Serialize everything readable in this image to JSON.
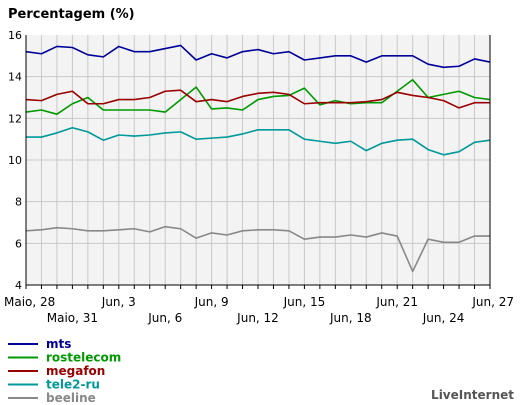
{
  "chart_data": {
    "type": "line",
    "title": "Percentagem (%)",
    "xlabel": "",
    "ylabel": "Percentagem (%)",
    "ylim": [
      4,
      16
    ],
    "yticks": [
      4,
      6,
      8,
      10,
      12,
      14,
      16
    ],
    "grid": true,
    "x": [
      "Maio, 28",
      "Maio, 29",
      "Maio, 30",
      "Maio, 31",
      "Jun, 1",
      "Jun, 2",
      "Jun, 3",
      "Jun, 4",
      "Jun, 5",
      "Jun, 6",
      "Jun, 7",
      "Jun, 8",
      "Jun, 9",
      "Jun, 10",
      "Jun, 11",
      "Jun, 12",
      "Jun, 13",
      "Jun, 14",
      "Jun, 15",
      "Jun, 16",
      "Jun, 17",
      "Jun, 18",
      "Jun, 19",
      "Jun, 20",
      "Jun, 21",
      "Jun, 22",
      "Jun, 23",
      "Jun, 24",
      "Jun, 25",
      "Jun, 26",
      "Jun, 27"
    ],
    "x_tick_labels_row1": [
      {
        "index": 0,
        "label": "Maio, 28"
      },
      {
        "index": 6,
        "label": "Jun, 3"
      },
      {
        "index": 12,
        "label": "Jun, 9"
      },
      {
        "index": 18,
        "label": "Jun, 15"
      },
      {
        "index": 24,
        "label": "Jun, 21"
      },
      {
        "index": 30,
        "label": "Jun, 27"
      }
    ],
    "x_tick_labels_row2": [
      {
        "index": 3,
        "label": "Maio, 31"
      },
      {
        "index": 9,
        "label": "Jun, 6"
      },
      {
        "index": 15,
        "label": "Jun, 12"
      },
      {
        "index": 21,
        "label": "Jun, 18"
      },
      {
        "index": 27,
        "label": "Jun, 24"
      }
    ],
    "legend_position": "bottom-left",
    "series": [
      {
        "name": "mts",
        "color": "#000099",
        "values": [
          15.2,
          15.1,
          15.45,
          15.4,
          15.05,
          14.95,
          15.45,
          15.2,
          15.2,
          15.35,
          15.5,
          14.8,
          15.1,
          14.9,
          15.2,
          15.3,
          15.1,
          15.2,
          14.8,
          14.9,
          15.0,
          15.0,
          14.7,
          15.0,
          15.0,
          15.0,
          14.6,
          14.45,
          14.5,
          14.85,
          14.7
        ]
      },
      {
        "name": "rostelecom",
        "color": "#009900",
        "values": [
          12.3,
          12.4,
          12.2,
          12.7,
          13.0,
          12.4,
          12.4,
          12.4,
          12.4,
          12.3,
          12.9,
          13.5,
          12.45,
          12.5,
          12.4,
          12.9,
          13.05,
          13.1,
          13.45,
          12.65,
          12.85,
          12.7,
          12.75,
          12.75,
          13.3,
          13.85,
          13.0,
          13.15,
          13.3,
          13.0,
          12.9
        ]
      },
      {
        "name": "megafon",
        "color": "#990000",
        "values": [
          12.9,
          12.85,
          13.15,
          13.3,
          12.7,
          12.7,
          12.9,
          12.9,
          13.0,
          13.3,
          13.35,
          12.8,
          12.9,
          12.8,
          13.05,
          13.2,
          13.25,
          13.15,
          12.7,
          12.75,
          12.75,
          12.75,
          12.8,
          12.9,
          13.25,
          13.1,
          13.0,
          12.85,
          12.5,
          12.75,
          12.75
        ]
      },
      {
        "name": "tele2-ru",
        "color": "#009999",
        "values": [
          11.1,
          11.1,
          11.3,
          11.55,
          11.35,
          10.95,
          11.2,
          11.15,
          11.2,
          11.3,
          11.35,
          11.0,
          11.05,
          11.1,
          11.25,
          11.45,
          11.45,
          11.45,
          11.0,
          10.9,
          10.8,
          10.9,
          10.45,
          10.8,
          10.95,
          11.0,
          10.5,
          10.25,
          10.4,
          10.85,
          10.95
        ]
      },
      {
        "name": "beeline",
        "color": "#888888",
        "values": [
          6.6,
          6.65,
          6.75,
          6.7,
          6.6,
          6.6,
          6.65,
          6.7,
          6.55,
          6.8,
          6.7,
          6.25,
          6.5,
          6.4,
          6.6,
          6.65,
          6.65,
          6.6,
          6.2,
          6.3,
          6.3,
          6.4,
          6.3,
          6.5,
          6.35,
          4.65,
          6.2,
          6.05,
          6.05,
          6.35,
          6.35
        ]
      }
    ],
    "watermark": "LiveInternet"
  },
  "colors": {
    "plot_bg": "#f3f3f3",
    "grid": "#c8c8c8",
    "axis": "#000000",
    "text": "#000000",
    "legend_text": "#666666",
    "watermark": "#555555"
  }
}
